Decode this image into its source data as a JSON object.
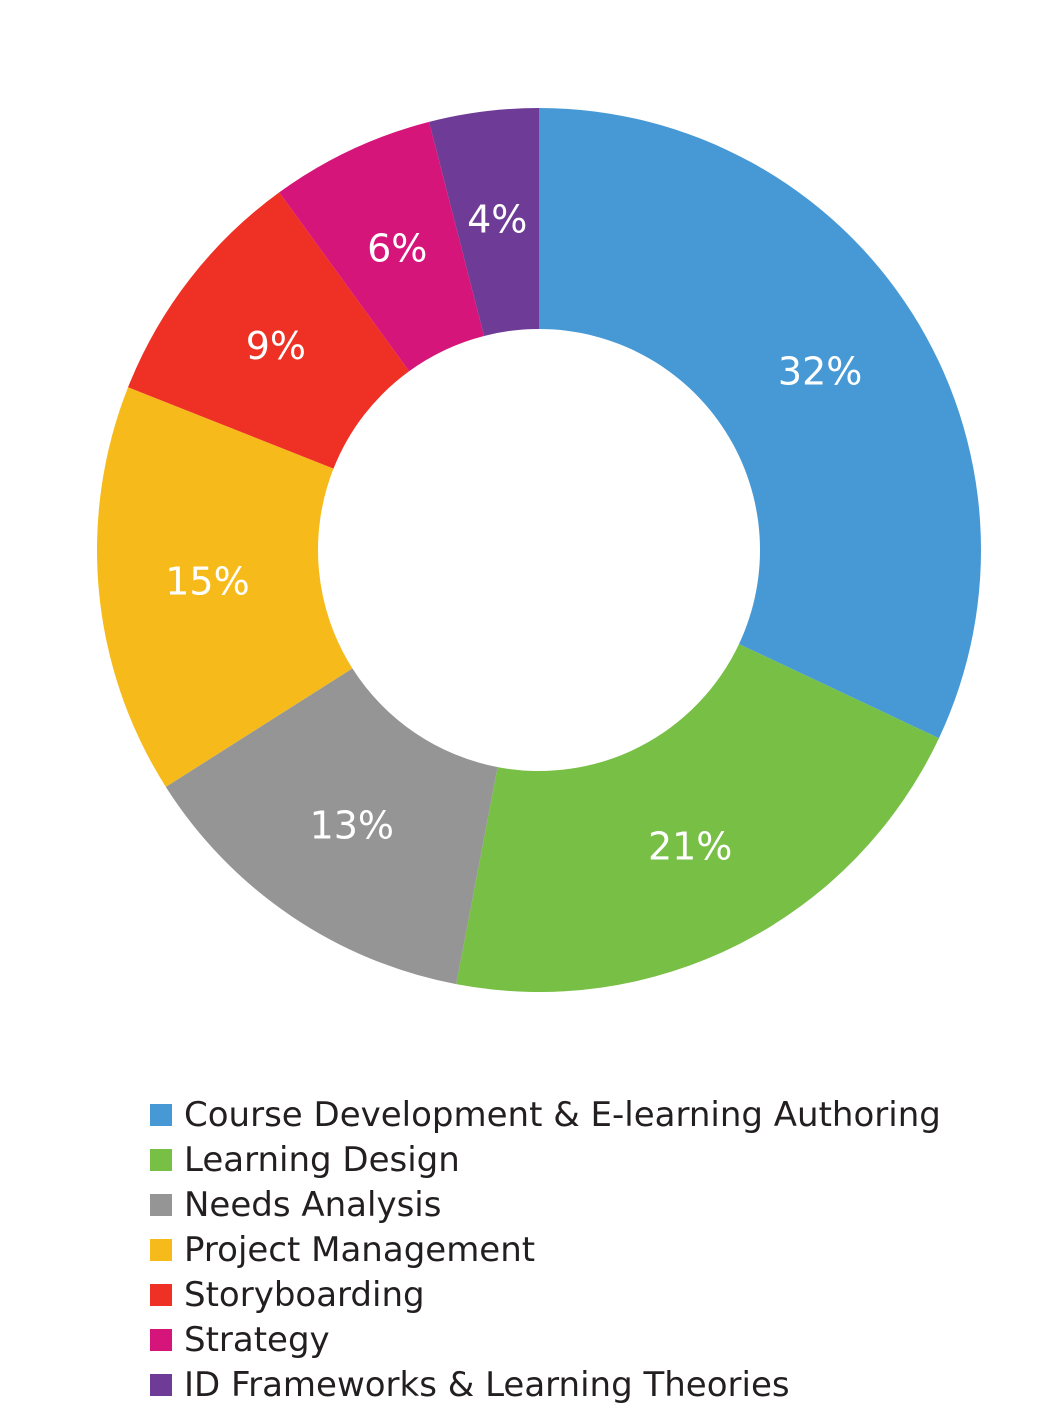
{
  "chart_data": {
    "type": "pie",
    "variant": "donut",
    "categories": [
      "Course Development & E-learning Authoring",
      "Learning Design",
      "Needs Analysis",
      "Project Management",
      "Storyboarding",
      "Strategy",
      "ID Frameworks & Learning Theories"
    ],
    "values": [
      32,
      21,
      13,
      15,
      9,
      6,
      4
    ],
    "data_labels": [
      "32%",
      "21%",
      "13%",
      "15%",
      "9%",
      "6%",
      "4%"
    ],
    "colors": [
      "#4799d5",
      "#77bf45",
      "#959595",
      "#f6bb1b",
      "#ee3124",
      "#d6157a",
      "#6e3b96"
    ],
    "legend_position": "bottom",
    "start": "top, clockwise"
  }
}
